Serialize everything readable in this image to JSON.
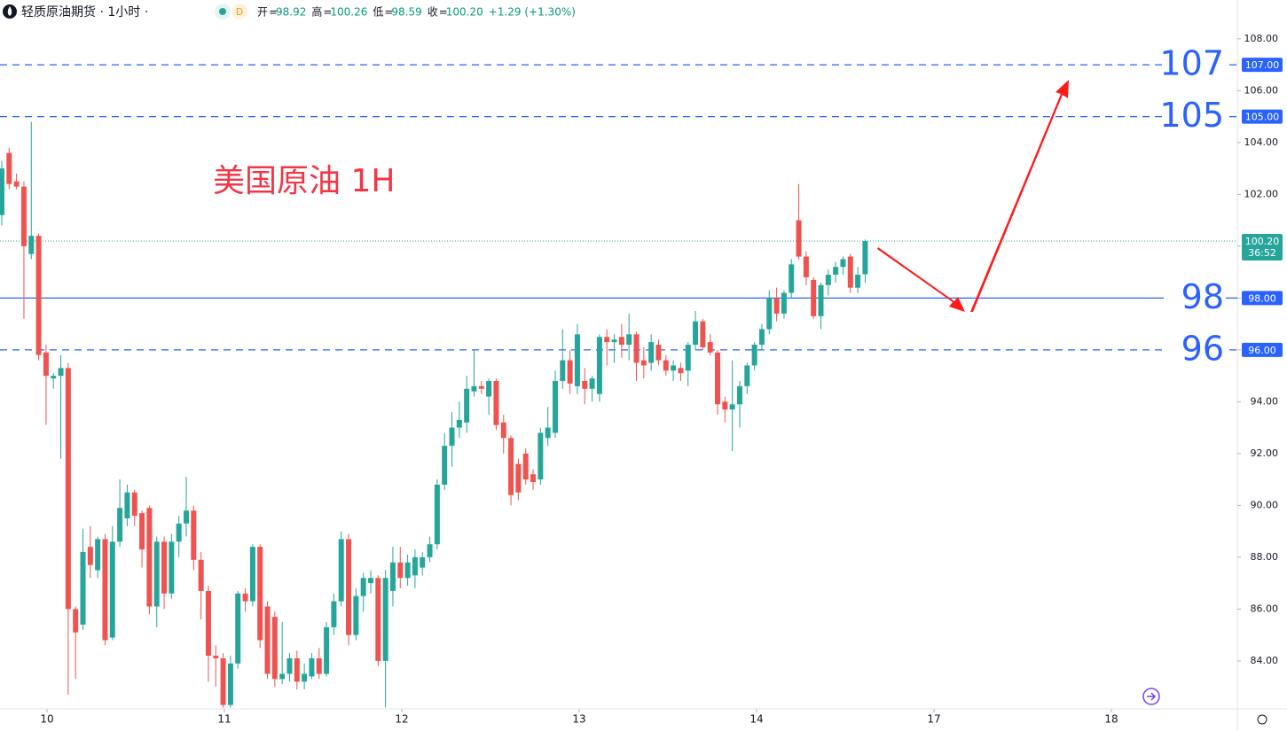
{
  "header": {
    "symbol": "轻质原油期货 · 1小时 ·",
    "badge": "D",
    "fields": [
      {
        "label": "开",
        "value": "98.92"
      },
      {
        "label": "高",
        "value": "100.26"
      },
      {
        "label": "低",
        "value": "98.59"
      },
      {
        "label": "收",
        "value": "100.20"
      }
    ],
    "change": "+1.29 (+1.30%)"
  },
  "chart_data": {
    "type": "candlestick",
    "annotation": "美国原油 1H",
    "up_color": "#26a69a",
    "down_color": "#ef5350",
    "level_color": "#2962ff",
    "x": [
      0,
      1,
      2,
      3,
      4,
      5,
      6,
      7,
      8,
      9,
      10,
      11,
      12,
      13,
      14,
      15,
      16,
      17,
      18,
      19,
      20,
      21,
      22,
      23,
      24,
      25,
      26,
      27,
      28,
      29,
      30,
      31,
      32,
      33,
      34,
      35,
      36,
      37,
      38,
      39,
      40,
      41,
      42,
      43,
      44,
      45,
      46,
      47,
      48,
      49,
      50,
      51,
      52,
      53,
      54,
      55,
      56,
      57,
      58,
      59,
      60,
      61,
      62,
      63,
      64,
      65,
      66,
      67,
      68,
      69,
      70,
      71,
      72,
      73,
      74,
      75,
      76,
      77,
      78,
      79,
      80,
      81,
      82,
      83,
      84,
      85,
      86,
      87,
      88,
      89,
      90,
      91,
      92,
      93,
      94,
      95,
      96,
      97,
      98,
      99,
      100,
      101,
      102,
      103,
      104,
      105,
      106,
      107,
      108,
      109,
      110,
      111,
      112,
      113,
      114,
      115,
      116,
      117
    ],
    "ohlc": [
      [
        101.2,
        103.3,
        100.8,
        103.0
      ],
      [
        103.6,
        103.8,
        102.2,
        102.4
      ],
      [
        102.5,
        102.8,
        102.2,
        102.3
      ],
      [
        102.3,
        102.5,
        97.2,
        100.0
      ],
      [
        99.7,
        104.8,
        99.5,
        100.4
      ],
      [
        100.4,
        100.5,
        95.6,
        95.8
      ],
      [
        95.9,
        96.2,
        93.1,
        95.0
      ],
      [
        94.9,
        95.1,
        94.5,
        95.0
      ],
      [
        95.0,
        95.8,
        91.8,
        95.3
      ],
      [
        95.3,
        95.5,
        82.7,
        86.0
      ],
      [
        86.0,
        86.1,
        83.3,
        85.1
      ],
      [
        85.4,
        89.1,
        85.2,
        88.2
      ],
      [
        88.4,
        89.2,
        87.2,
        87.7
      ],
      [
        87.5,
        88.8,
        87.2,
        88.7
      ],
      [
        88.7,
        88.9,
        84.6,
        84.8
      ],
      [
        84.9,
        89.2,
        84.8,
        88.6
      ],
      [
        88.6,
        91.0,
        88.4,
        89.9
      ],
      [
        89.5,
        90.8,
        89.2,
        90.5
      ],
      [
        90.5,
        90.6,
        89.2,
        89.6
      ],
      [
        89.7,
        89.8,
        87.6,
        88.3
      ],
      [
        89.9,
        90.0,
        85.8,
        86.1
      ],
      [
        86.1,
        88.8,
        85.3,
        88.6
      ],
      [
        88.6,
        88.8,
        86.0,
        86.6
      ],
      [
        86.6,
        88.9,
        86.4,
        88.6
      ],
      [
        88.6,
        89.6,
        88.0,
        89.3
      ],
      [
        89.3,
        91.1,
        88.8,
        89.8
      ],
      [
        89.8,
        90.0,
        87.5,
        87.9
      ],
      [
        87.9,
        88.2,
        85.6,
        86.7
      ],
      [
        86.7,
        86.9,
        83.2,
        84.2
      ],
      [
        84.2,
        84.6,
        83.0,
        84.1
      ],
      [
        84.1,
        84.3,
        82.2,
        82.3
      ],
      [
        82.3,
        84.2,
        82.2,
        83.9
      ],
      [
        83.9,
        86.7,
        83.7,
        86.6
      ],
      [
        86.6,
        86.8,
        85.9,
        86.3
      ],
      [
        86.3,
        88.5,
        86.1,
        88.4
      ],
      [
        88.4,
        88.5,
        84.5,
        84.8
      ],
      [
        86.1,
        86.3,
        83.3,
        83.5
      ],
      [
        85.7,
        85.9,
        83.0,
        83.3
      ],
      [
        83.3,
        85.5,
        83.1,
        83.5
      ],
      [
        83.5,
        84.3,
        83.2,
        84.1
      ],
      [
        84.1,
        84.4,
        82.9,
        83.2
      ],
      [
        83.2,
        83.9,
        82.9,
        83.5
      ],
      [
        83.4,
        84.3,
        83.3,
        84.1
      ],
      [
        84.1,
        84.5,
        83.3,
        83.5
      ],
      [
        83.5,
        85.5,
        83.4,
        85.3
      ],
      [
        85.3,
        86.6,
        85.0,
        86.3
      ],
      [
        86.3,
        89.0,
        86.1,
        88.7
      ],
      [
        88.7,
        88.9,
        84.6,
        85.0
      ],
      [
        85.0,
        86.8,
        84.8,
        86.5
      ],
      [
        86.5,
        87.4,
        85.9,
        87.2
      ],
      [
        87.0,
        87.5,
        86.6,
        87.2
      ],
      [
        87.2,
        87.3,
        83.8,
        84.0
      ],
      [
        84.0,
        87.5,
        82.2,
        87.2
      ],
      [
        86.7,
        88.4,
        86.1,
        87.8
      ],
      [
        87.8,
        88.4,
        86.8,
        87.2
      ],
      [
        87.2,
        88.1,
        86.9,
        87.8
      ],
      [
        87.3,
        88.3,
        86.8,
        88.0
      ],
      [
        87.6,
        88.2,
        87.3,
        88.0
      ],
      [
        88.0,
        88.8,
        87.8,
        88.5
      ],
      [
        88.5,
        91.0,
        88.3,
        90.8
      ],
      [
        90.8,
        92.8,
        90.6,
        92.3
      ],
      [
        92.3,
        93.6,
        91.5,
        93.0
      ],
      [
        93.0,
        94.0,
        92.6,
        93.3
      ],
      [
        93.2,
        95.0,
        92.8,
        94.5
      ],
      [
        94.4,
        96.0,
        94.2,
        94.6
      ],
      [
        94.6,
        94.8,
        94.3,
        94.5
      ],
      [
        94.2,
        94.9,
        93.5,
        94.8
      ],
      [
        94.8,
        94.9,
        92.9,
        93.1
      ],
      [
        93.2,
        93.5,
        92.0,
        92.6
      ],
      [
        92.6,
        92.7,
        90.0,
        90.4
      ],
      [
        91.6,
        91.8,
        90.2,
        90.5
      ],
      [
        92.0,
        92.2,
        90.8,
        91.0
      ],
      [
        91.2,
        91.4,
        90.6,
        90.9
      ],
      [
        91.0,
        93.0,
        90.8,
        92.8
      ],
      [
        92.6,
        93.8,
        92.3,
        93.0
      ],
      [
        92.8,
        95.2,
        92.6,
        94.8
      ],
      [
        94.8,
        96.8,
        94.5,
        95.6
      ],
      [
        95.6,
        96.0,
        94.3,
        94.7
      ],
      [
        94.6,
        97.0,
        94.3,
        96.6
      ],
      [
        94.8,
        95.3,
        93.9,
        94.5
      ],
      [
        94.5,
        95.0,
        94.0,
        94.9
      ],
      [
        94.3,
        96.6,
        94.0,
        96.5
      ],
      [
        96.5,
        96.8,
        95.4,
        96.3
      ],
      [
        96.3,
        96.6,
        95.5,
        96.4
      ],
      [
        96.5,
        97.0,
        95.7,
        96.2
      ],
      [
        96.2,
        97.4,
        95.6,
        96.6
      ],
      [
        96.6,
        96.7,
        94.8,
        95.5
      ],
      [
        95.6,
        96.1,
        94.9,
        95.4
      ],
      [
        95.5,
        96.6,
        95.2,
        96.3
      ],
      [
        96.2,
        96.4,
        95.4,
        95.6
      ],
      [
        95.6,
        95.8,
        95.0,
        95.2
      ],
      [
        95.2,
        95.6,
        94.8,
        95.4
      ],
      [
        95.3,
        95.5,
        94.8,
        95.1
      ],
      [
        95.2,
        96.3,
        94.6,
        96.2
      ],
      [
        96.2,
        97.5,
        96.0,
        97.1
      ],
      [
        97.1,
        97.2,
        96.0,
        96.1
      ],
      [
        96.3,
        96.6,
        95.8,
        95.9
      ],
      [
        95.9,
        96.0,
        93.5,
        93.9
      ],
      [
        94.0,
        94.2,
        93.2,
        93.7
      ],
      [
        93.7,
        95.6,
        92.1,
        93.9
      ],
      [
        93.9,
        94.8,
        93.0,
        94.6
      ],
      [
        94.6,
        95.5,
        94.3,
        95.4
      ],
      [
        95.4,
        96.3,
        95.2,
        96.2
      ],
      [
        96.2,
        97.0,
        96.0,
        96.8
      ],
      [
        96.8,
        98.3,
        96.6,
        98.0
      ],
      [
        98.0,
        98.4,
        97.1,
        97.4
      ],
      [
        97.4,
        98.3,
        97.2,
        98.2
      ],
      [
        98.2,
        99.5,
        98.0,
        99.3
      ],
      [
        101.0,
        102.4,
        99.5,
        99.6
      ],
      [
        99.6,
        99.8,
        98.5,
        98.8
      ],
      [
        98.7,
        98.8,
        97.2,
        97.3
      ],
      [
        97.3,
        98.6,
        96.8,
        98.5
      ],
      [
        98.5,
        99.1,
        98.1,
        98.9
      ],
      [
        98.9,
        99.4,
        98.6,
        99.2
      ],
      [
        99.2,
        99.6,
        98.9,
        99.5
      ],
      [
        99.6,
        99.7,
        98.2,
        98.4
      ],
      [
        98.4,
        99.2,
        98.2,
        98.9
      ],
      [
        98.92,
        100.26,
        98.59,
        100.2
      ]
    ],
    "xlim": [
      -0.24,
      167.43
    ],
    "xticks": [
      {
        "value": 6.13,
        "label": "10"
      },
      {
        "value": 30.17,
        "label": "11"
      },
      {
        "value": 54.21,
        "label": "12"
      },
      {
        "value": 78.25,
        "label": "13"
      },
      {
        "value": 102.28,
        "label": "14"
      },
      {
        "value": 126.32,
        "label": "17"
      },
      {
        "value": 150.36,
        "label": "18"
      }
    ],
    "ylim": [
      82.15,
      109.5
    ],
    "yticks": [
      {
        "value": 84,
        "label": "84.00"
      },
      {
        "value": 86,
        "label": "86.00"
      },
      {
        "value": 88,
        "label": "88.00"
      },
      {
        "value": 90,
        "label": "90.00"
      },
      {
        "value": 92,
        "label": "92.00"
      },
      {
        "value": 94,
        "label": "94.00"
      },
      {
        "value": 96,
        "label": "96.00"
      },
      {
        "value": 98,
        "label": "98.00"
      },
      {
        "value": 100,
        "label": "100.00"
      },
      {
        "value": 102,
        "label": "102.00"
      },
      {
        "value": 104,
        "label": "104.00"
      },
      {
        "value": 106,
        "label": "106.00"
      },
      {
        "value": 108,
        "label": "108.00"
      }
    ],
    "levels": [
      {
        "value": 107,
        "label": "107.00",
        "style": "dashed"
      },
      {
        "value": 105,
        "label": "105.00",
        "style": "dashed"
      },
      {
        "value": 98,
        "label": "98.00",
        "style": "solid"
      },
      {
        "value": 96,
        "label": "96.00",
        "style": "dashed"
      }
    ],
    "last_price": {
      "value": 100.2,
      "label": "100.20",
      "countdown": "36:52"
    }
  }
}
